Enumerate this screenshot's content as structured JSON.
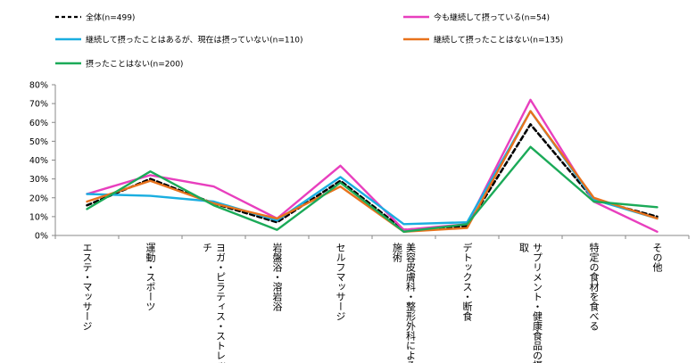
{
  "chart_data": {
    "type": "line",
    "title": "",
    "xlabel": "",
    "ylabel": "",
    "ylim": [
      0,
      80
    ],
    "y_ticks": [
      0,
      10,
      20,
      30,
      40,
      50,
      60,
      70,
      80
    ],
    "y_tick_suffix": "%",
    "grid": false,
    "legend_position": "top",
    "categories": [
      "エステ・マッサージ",
      "運動・スポーツ",
      "ヨガ・ピラティス・ストレッチ",
      "岩盤浴・溶岩浴",
      "セルフマッサージ",
      "美容皮膚科・整形外科による施術",
      "デトックス・断食",
      "サプリメント・健康食品の摂取",
      "特定の食材を食べる",
      "その他"
    ],
    "series": [
      {
        "name": "全体(n=499)",
        "color": "#000000",
        "dashed": true,
        "values": [
          16,
          30,
          17,
          7,
          29,
          3,
          5,
          59,
          19,
          10
        ]
      },
      {
        "name": "今も継続して摂っている(n=54)",
        "color": "#E83FBE",
        "dashed": false,
        "values": [
          22,
          32,
          26,
          9,
          37,
          3,
          6,
          72,
          18,
          2
        ]
      },
      {
        "name": "継続して摂ったことはあるが、現在は摂っていない(n=110)",
        "color": "#1AAEE0",
        "dashed": false,
        "values": [
          22,
          21,
          18,
          8,
          31,
          6,
          7,
          66,
          19,
          9
        ]
      },
      {
        "name": "継続して摂ったことはない(n=135)",
        "color": "#E8721C",
        "dashed": false,
        "values": [
          18,
          29,
          17,
          9,
          26,
          2,
          4,
          66,
          20,
          9
        ]
      },
      {
        "name": "摂ったことはない(n=200)",
        "color": "#1BAA58",
        "dashed": false,
        "values": [
          14,
          34,
          16,
          3,
          28,
          2,
          6,
          47,
          18,
          15
        ]
      }
    ]
  }
}
